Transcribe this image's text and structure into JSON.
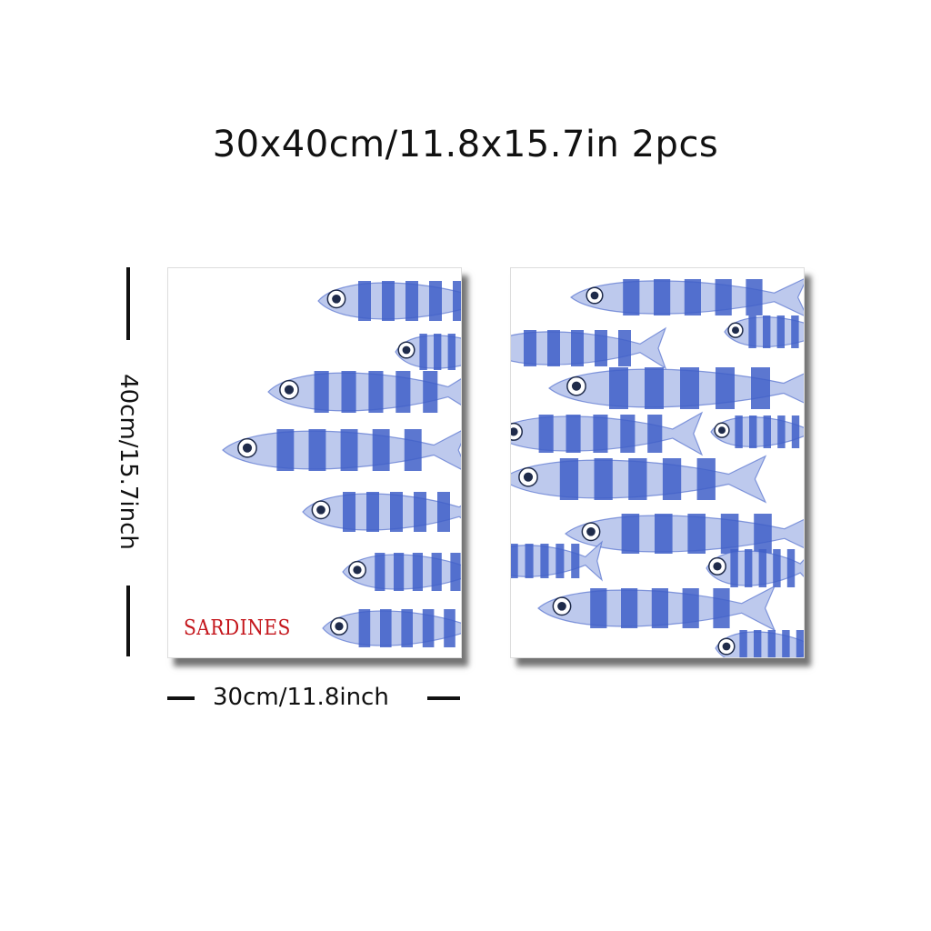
{
  "title": "30x40cm/11.8x15.7in 2pcs",
  "height_label": "40cm/15.7inch",
  "width_label": "30cm/11.8inch",
  "artwork_text": "SARDINES",
  "colors": {
    "fish_blue": "#3f5fc8",
    "fish_light": "#b9c6ec",
    "text_red": "#c4161c",
    "eye_dark": "#1f2b4a"
  },
  "panels": [
    {
      "name": "left-print",
      "motif": "fish-icon"
    },
    {
      "name": "right-print",
      "motif": "fish-icon"
    }
  ]
}
